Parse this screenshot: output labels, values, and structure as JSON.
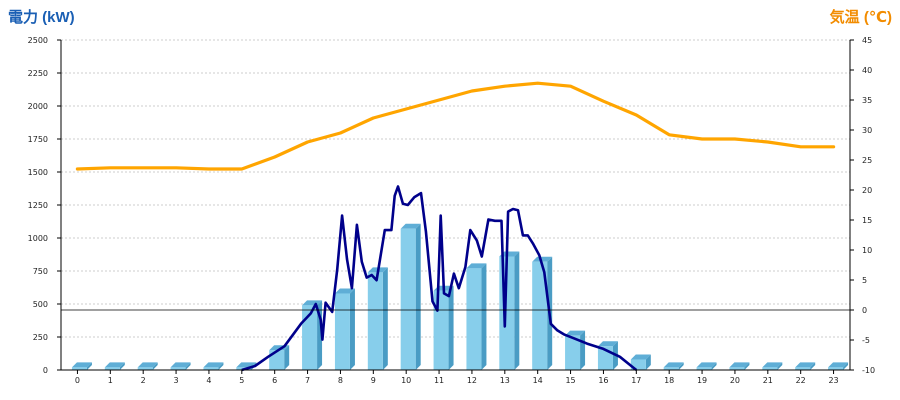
{
  "chart_data": {
    "type": "bar",
    "title_left": "電力 (kW)",
    "title_right": "気温 (℃)",
    "colors": {
      "title_left": "#1a5fb4",
      "title_right": "#f28c00",
      "bar_front": "#87ceeb",
      "bar_side": "#4a9cc4",
      "bar_top": "#5faed6",
      "power_line": "#00008b",
      "temp_line": "#ffa500",
      "axis": "#000000"
    },
    "x_categories": [
      "0",
      "1",
      "2",
      "3",
      "4",
      "5",
      "6",
      "7",
      "8",
      "9",
      "10",
      "11",
      "12",
      "13",
      "14",
      "15",
      "16",
      "17",
      "18",
      "19",
      "20",
      "21",
      "22",
      "23"
    ],
    "y_left": {
      "min": 0,
      "max": 2500,
      "ticks": [
        0,
        250,
        500,
        750,
        1000,
        1250,
        1500,
        1750,
        2000,
        2250,
        2500
      ]
    },
    "y_right": {
      "min": -10,
      "max": 45,
      "ticks": [
        -10,
        -5,
        0,
        5,
        10,
        15,
        20,
        25,
        30,
        35,
        40,
        45
      ]
    },
    "series": [
      {
        "kind": "bar",
        "axis": "left",
        "values": [
          20,
          20,
          20,
          20,
          20,
          20,
          150,
          490,
          580,
          740,
          1070,
          600,
          770,
          860,
          820,
          260,
          180,
          80,
          20,
          20,
          20,
          20,
          20,
          20
        ]
      },
      {
        "kind": "line",
        "axis": "left",
        "points": [
          [
            5,
            0
          ],
          [
            5.4,
            30
          ],
          [
            5.8,
            100
          ],
          [
            6.3,
            180
          ],
          [
            6.8,
            350
          ],
          [
            7.1,
            430
          ],
          [
            7.25,
            500
          ],
          [
            7.4,
            380
          ],
          [
            7.45,
            230
          ],
          [
            7.55,
            510
          ],
          [
            7.75,
            440
          ],
          [
            7.9,
            760
          ],
          [
            8.05,
            1170
          ],
          [
            8.2,
            840
          ],
          [
            8.35,
            620
          ],
          [
            8.5,
            1100
          ],
          [
            8.65,
            820
          ],
          [
            8.8,
            700
          ],
          [
            8.95,
            720
          ],
          [
            9.1,
            680
          ],
          [
            9.35,
            1060
          ],
          [
            9.55,
            1060
          ],
          [
            9.65,
            1320
          ],
          [
            9.75,
            1390
          ],
          [
            9.9,
            1260
          ],
          [
            10.05,
            1250
          ],
          [
            10.25,
            1310
          ],
          [
            10.45,
            1340
          ],
          [
            10.6,
            1050
          ],
          [
            10.8,
            520
          ],
          [
            10.95,
            450
          ],
          [
            11.05,
            1170
          ],
          [
            11.15,
            580
          ],
          [
            11.3,
            560
          ],
          [
            11.45,
            730
          ],
          [
            11.6,
            620
          ],
          [
            11.8,
            780
          ],
          [
            11.95,
            1060
          ],
          [
            12.15,
            980
          ],
          [
            12.3,
            860
          ],
          [
            12.5,
            1140
          ],
          [
            12.7,
            1130
          ],
          [
            12.9,
            1130
          ],
          [
            13.0,
            330
          ],
          [
            13.1,
            1200
          ],
          [
            13.25,
            1220
          ],
          [
            13.4,
            1210
          ],
          [
            13.55,
            1020
          ],
          [
            13.7,
            1020
          ],
          [
            13.85,
            960
          ],
          [
            14.05,
            870
          ],
          [
            14.2,
            740
          ],
          [
            14.4,
            350
          ],
          [
            14.6,
            300
          ],
          [
            14.8,
            270
          ],
          [
            15.1,
            240
          ],
          [
            15.5,
            200
          ],
          [
            16,
            160
          ],
          [
            16.5,
            100
          ],
          [
            17,
            0
          ]
        ]
      },
      {
        "kind": "line",
        "axis": "right",
        "points": [
          [
            0,
            23.5
          ],
          [
            1,
            23.7
          ],
          [
            2,
            23.7
          ],
          [
            3,
            23.7
          ],
          [
            4,
            23.5
          ],
          [
            5,
            23.5
          ],
          [
            6,
            25.5
          ],
          [
            7,
            28
          ],
          [
            8,
            29.5
          ],
          [
            9,
            32
          ],
          [
            10,
            33.5
          ],
          [
            11,
            35
          ],
          [
            12,
            36.5
          ],
          [
            13,
            37.3
          ],
          [
            14,
            37.8
          ],
          [
            15,
            37.3
          ],
          [
            16,
            34.8
          ],
          [
            17,
            32.5
          ],
          [
            18,
            29.2
          ],
          [
            19,
            28.5
          ],
          [
            20,
            28.5
          ],
          [
            21,
            28
          ],
          [
            22,
            27.2
          ],
          [
            23,
            27.2
          ]
        ]
      }
    ]
  }
}
